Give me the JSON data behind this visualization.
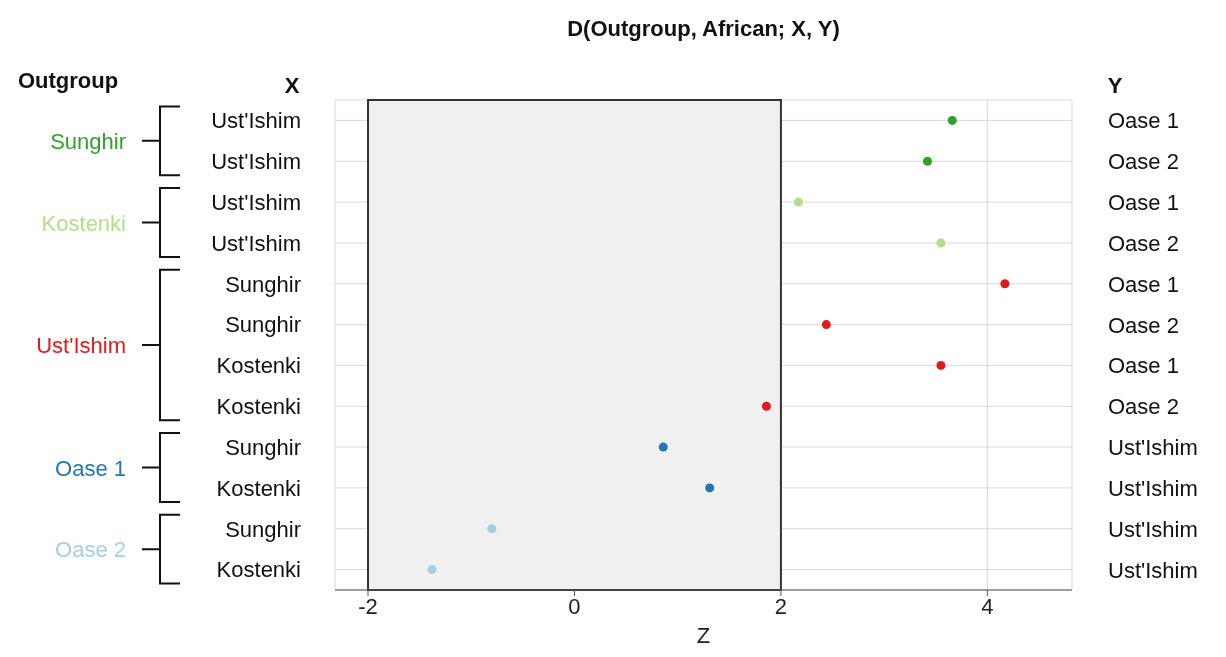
{
  "chart_data": {
    "type": "scatter",
    "orientation": "horizontal",
    "title": "D(Outgroup, African; X, Y)",
    "xlabel": "Z",
    "ylabel": "X",
    "y2label": "Y",
    "legend_title": "Outgroup",
    "categories": [
      "Ust'Ishim",
      "Ust'Ishim",
      "Ust'Ishim",
      "Ust'Ishim",
      "Sunghir",
      "Sunghir",
      "Kostenki",
      "Kostenki",
      "Sunghir",
      "Kostenki",
      "Sunghir",
      "Kostenki"
    ],
    "y2_categories": [
      "Oase 1",
      "Oase 2",
      "Oase 1",
      "Oase 2",
      "Oase 1",
      "Oase 2",
      "Oase 1",
      "Oase 2",
      "Ust'Ishim",
      "Ust'Ishim",
      "Ust'Ishim",
      "Ust'Ishim"
    ],
    "series": [
      {
        "name": "Sunghir",
        "color": "#33a02c",
        "values": [
          3.66,
          3.42,
          null,
          null,
          null,
          null,
          null,
          null,
          null,
          null,
          null,
          null
        ]
      },
      {
        "name": "Kostenki",
        "color": "#b2df8a",
        "values": [
          null,
          null,
          2.17,
          3.55,
          null,
          null,
          null,
          null,
          null,
          null,
          null,
          null
        ]
      },
      {
        "name": "Ust'Ishim",
        "color": "#e31a1c",
        "values": [
          null,
          null,
          null,
          null,
          4.17,
          2.44,
          3.55,
          1.86,
          null,
          null,
          null,
          null
        ]
      },
      {
        "name": "Oase 1",
        "color": "#1f78b4",
        "values": [
          null,
          null,
          null,
          null,
          null,
          null,
          null,
          null,
          0.86,
          1.31,
          null,
          null
        ]
      },
      {
        "name": "Oase 2",
        "color": "#a6cee3",
        "values": [
          null,
          null,
          null,
          null,
          null,
          null,
          null,
          null,
          null,
          null,
          -0.8,
          -1.38
        ]
      }
    ],
    "xlim": [
      -2.32,
      4.82
    ],
    "xticks": [
      -2,
      0,
      2,
      4
    ],
    "bands": [
      {
        "axis": "x",
        "from": -2,
        "to": 2,
        "color": "#f0f0f0"
      }
    ],
    "grid": true,
    "marker": "circle"
  }
}
